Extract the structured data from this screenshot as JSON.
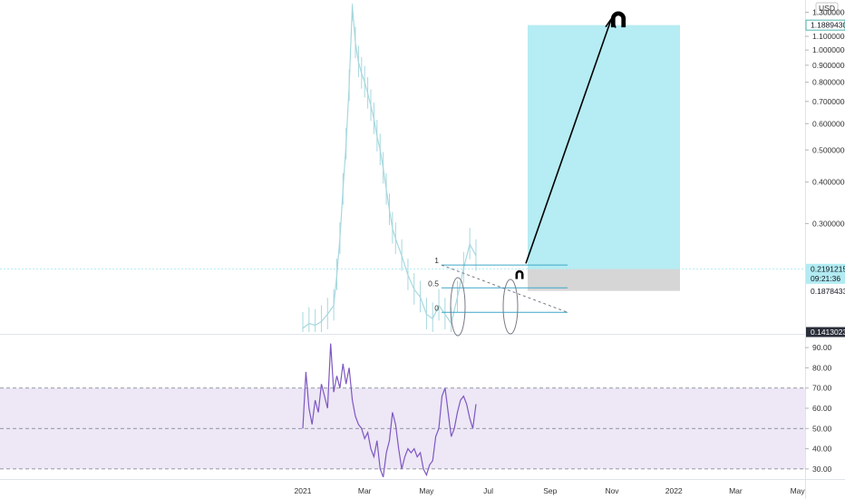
{
  "chart_data": [
    {
      "type": "candlestick-area",
      "name_hidden": true,
      "currency": "USD",
      "y_scale": "log",
      "ylim": [
        0.1413,
        1.38
      ],
      "y_ticks": [
        {
          "value": 1.3,
          "label": "1.30000000"
        },
        {
          "value": 1.1,
          "label": "1.10000000"
        },
        {
          "value": 1.0,
          "label": "1.00000000"
        },
        {
          "value": 0.9,
          "label": "0.90000000"
        },
        {
          "value": 0.8,
          "label": "0.80000000"
        },
        {
          "value": 0.7,
          "label": "0.70000000"
        },
        {
          "value": 0.6,
          "label": "0.60000000"
        },
        {
          "value": 0.5,
          "label": "0.50000000"
        },
        {
          "value": 0.4,
          "label": "0.40000000"
        },
        {
          "value": 0.3,
          "label": "0.30000000"
        }
      ],
      "price_badges": [
        {
          "value": 1.18894301,
          "label": "1.18894301",
          "style": "target"
        },
        {
          "value": 0.21912157,
          "label": "0.21912157",
          "sub": "09:21:36",
          "style": "current"
        },
        {
          "value": 0.18784338,
          "label": "0.18784338",
          "style": "plain"
        },
        {
          "value": 0.14130231,
          "label": "0.14130231",
          "style": "dark"
        }
      ],
      "fib_levels": [
        {
          "label": "1",
          "value": 0.225
        },
        {
          "label": "0.5",
          "value": 0.192
        },
        {
          "label": "0",
          "value": 0.162
        }
      ],
      "position_tool": {
        "entry": 0.219,
        "target": 1.189,
        "stop": 0.188
      },
      "series": [
        {
          "name": "",
          "x_month_index": [
            0.0,
            0.2,
            0.4,
            0.6,
            0.8,
            1.0,
            1.1,
            1.2,
            1.3,
            1.4,
            1.5,
            1.6,
            1.7,
            1.8,
            1.9,
            2.0,
            2.1,
            2.2,
            2.3,
            2.4,
            2.5,
            2.6,
            2.7,
            2.8,
            2.9,
            3.0,
            3.2,
            3.4,
            3.6,
            3.8,
            4.0,
            4.2,
            4.4,
            4.6,
            4.8,
            5.0,
            5.2,
            5.4,
            5.6
          ],
          "values": [
            0.145,
            0.15,
            0.148,
            0.152,
            0.16,
            0.17,
            0.21,
            0.27,
            0.38,
            0.52,
            0.78,
            1.36,
            1.05,
            0.92,
            0.85,
            0.8,
            0.74,
            0.68,
            0.62,
            0.55,
            0.5,
            0.44,
            0.38,
            0.33,
            0.29,
            0.27,
            0.24,
            0.21,
            0.19,
            0.18,
            0.16,
            0.155,
            0.17,
            0.16,
            0.15,
            0.18,
            0.22,
            0.26,
            0.24
          ]
        }
      ]
    },
    {
      "type": "line",
      "indicator": "RSI",
      "ylim": [
        25,
        95
      ],
      "y_ticks": [
        "90.00",
        "80.00",
        "70.00",
        "60.00",
        "50.00",
        "40.00",
        "30.00"
      ],
      "bands": {
        "upper": 70,
        "middle": 50,
        "lower": 30
      },
      "series": [
        {
          "name": "",
          "x_month_index": [
            0.0,
            0.1,
            0.2,
            0.3,
            0.4,
            0.5,
            0.6,
            0.7,
            0.8,
            0.9,
            1.0,
            1.1,
            1.2,
            1.3,
            1.4,
            1.5,
            1.6,
            1.7,
            1.8,
            1.9,
            2.0,
            2.1,
            2.2,
            2.3,
            2.4,
            2.5,
            2.6,
            2.7,
            2.8,
            2.9,
            3.0,
            3.1,
            3.2,
            3.3,
            3.4,
            3.5,
            3.6,
            3.7,
            3.8,
            3.9,
            4.0,
            4.1,
            4.2,
            4.3,
            4.4,
            4.5,
            4.6,
            4.7,
            4.8,
            4.9,
            5.0,
            5.1,
            5.2,
            5.3,
            5.4,
            5.5,
            5.6
          ],
          "values": [
            50,
            78,
            60,
            52,
            64,
            58,
            72,
            66,
            60,
            92,
            68,
            76,
            70,
            82,
            72,
            80,
            64,
            56,
            52,
            50,
            45,
            48,
            40,
            36,
            44,
            30,
            26,
            38,
            44,
            58,
            52,
            40,
            30,
            36,
            40,
            38,
            40,
            36,
            38,
            30,
            27,
            32,
            34,
            46,
            50,
            66,
            70,
            58,
            46,
            50,
            58,
            64,
            66,
            62,
            55,
            50,
            62
          ]
        }
      ]
    }
  ],
  "x_axis": {
    "labels": [
      {
        "month_index": 0.0,
        "label": "2021"
      },
      {
        "month_index": 2.0,
        "label": "Mar"
      },
      {
        "month_index": 4.0,
        "label": "May"
      },
      {
        "month_index": 6.0,
        "label": "Jul"
      },
      {
        "month_index": 8.0,
        "label": "Sep"
      },
      {
        "month_index": 10.0,
        "label": "Nov"
      },
      {
        "month_index": 12.0,
        "label": "2022"
      },
      {
        "month_index": 14.0,
        "label": "Mar"
      },
      {
        "month_index": 16.0,
        "label": "May"
      }
    ]
  },
  "colors": {
    "price_line": "#a7d8de",
    "fib_line": "#3fa7c8",
    "target_box": "#b2ebf2",
    "stop_box": "#d6d6d6",
    "rsi_line": "#7e57c2",
    "rsi_band": "#ede7f6",
    "arrow": "#000000",
    "dark_badge": "#2a2e39"
  },
  "icons": [
    "magnet-icon"
  ]
}
